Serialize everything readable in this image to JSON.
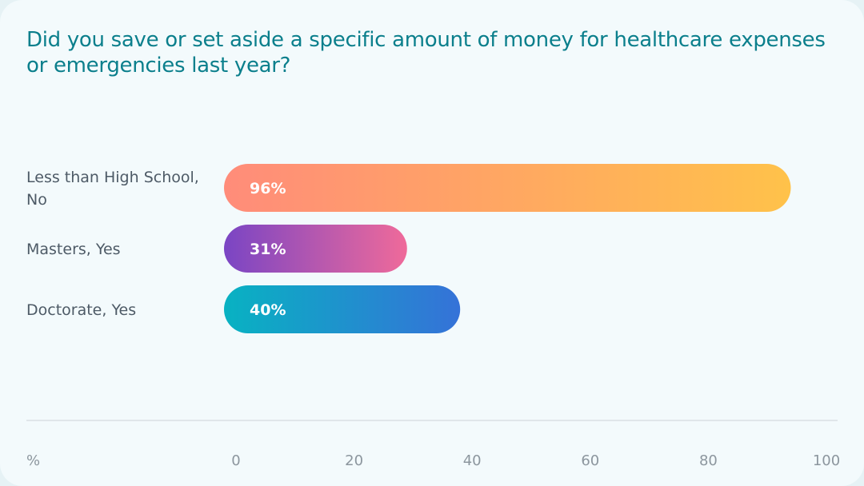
{
  "chart_data": {
    "type": "bar",
    "orientation": "horizontal",
    "title": "Did you save or set aside a specific amount of money for healthcare expenses or emergencies last year?",
    "categories": [
      [
        "Less than High School,",
        "No"
      ],
      [
        "Masters, Yes"
      ],
      [
        "Doctorate, Yes"
      ]
    ],
    "values": [
      96,
      31,
      40
    ],
    "data_labels": [
      "96%",
      "31%",
      "40%"
    ],
    "xlim": [
      0,
      100
    ],
    "x_ticks": [
      0,
      20,
      40,
      60,
      80,
      100
    ],
    "x_tick_labels": [
      "0",
      "20",
      "40",
      "60",
      "80",
      "100"
    ],
    "axis_unit_label": "%",
    "grid": false,
    "bar_gradients": [
      [
        "#ff8c7a",
        "#ffc24a"
      ],
      [
        "#7a45c4",
        "#ef6a9a"
      ],
      [
        "#08b2c2",
        "#3572d8"
      ]
    ]
  }
}
